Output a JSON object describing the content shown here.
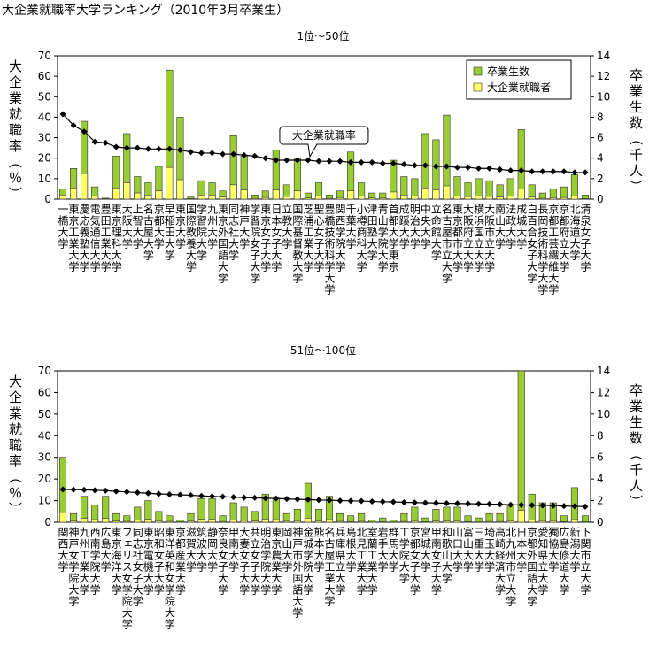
{
  "title": "大企業就職率大学ランキング（2010年3月卒業生）",
  "chart_data": [
    {
      "type": "bar",
      "title": "1位～50位",
      "ylabel": "大企業就職率（％）",
      "y2label": "卒業生数（千人）",
      "ylim": [
        0,
        70
      ],
      "yticks": [
        0,
        10,
        20,
        30,
        40,
        50,
        60,
        70
      ],
      "y2lim": [
        0,
        14
      ],
      "y2ticks": [
        0,
        2,
        4,
        6,
        8,
        10,
        12,
        14
      ],
      "legend": "upper right",
      "categories": [
        "一橋大学",
        "東京工業大学",
        "慶応義塾大学",
        "電気通信大学",
        "豊田工業大学",
        "東京理科大学",
        "大阪大学",
        "上智大学",
        "名古屋大学",
        "京都大学",
        "早稲田大学",
        "東京大学",
        "国際教養大学",
        "学習院大学",
        "九州大学",
        "東京外国語大学",
        "同志社大学",
        "神戸大学",
        "学習院女子大学",
        "東京女子大学",
        "日本女子大学",
        "立教大学",
        "国際基督教大学",
        "芝浦工業大学",
        "聖心女子大学",
        "豊橋技術科学大学",
        "関西学院大学",
        "千葉大学",
        "小樽商科大学",
        "津田塾大学",
        "青山学院大学",
        "首都大学東京",
        "成蹊大学",
        "明治大学",
        "中央大学",
        "立命館大学",
        "名古屋市立大学",
        "東京都市大学",
        "大阪府立大学",
        "横浜国立大学",
        "大阪市立大学",
        "南山大学",
        "法政大学",
        "成城大学",
        "白百合女子大学",
        "長岡技術科学大学",
        "京都工芸繊維大学",
        "京都府立大学",
        "北海道大学",
        "清泉女子大学"
      ],
      "series": [
        {
          "name": "卒業生数",
          "type": "bar",
          "axis": "y2",
          "color": "#99cc33",
          "values": [
            1.0,
            3.0,
            7.6,
            1.2,
            0.1,
            4.2,
            6.4,
            2.2,
            1.6,
            3.2,
            12.6,
            8.0,
            0.2,
            1.8,
            1.6,
            0.8,
            6.2,
            4.2,
            0.4,
            0.8,
            4.8,
            1.4,
            4.0,
            0.6,
            1.6,
            0.4,
            0.8,
            4.6,
            1.6,
            0.6,
            0.6,
            3.8,
            2.2,
            2.0,
            6.4,
            5.8,
            8.2,
            2.2,
            1.6,
            2.0,
            1.8,
            1.4,
            2.0,
            6.8,
            1.4,
            0.6,
            1.0,
            1.2,
            2.4,
            0.4
          ]
        },
        {
          "name": "大企業就職者",
          "type": "bar",
          "axis": "y2",
          "color": "#ffff66",
          "values": [
            0.4,
            1.1,
            2.5,
            0.3,
            0.03,
            1.1,
            1.6,
            0.6,
            0.4,
            0.8,
            3.1,
            1.9,
            0.05,
            0.4,
            0.4,
            0.2,
            1.4,
            0.9,
            0.08,
            0.16,
            0.9,
            0.27,
            0.8,
            0.11,
            0.3,
            0.07,
            0.15,
            0.8,
            0.3,
            0.11,
            0.1,
            0.7,
            0.4,
            0.3,
            1.1,
            0.9,
            1.3,
            0.3,
            0.25,
            0.3,
            0.27,
            0.2,
            0.28,
            1.0,
            0.19,
            0.08,
            0.14,
            0.16,
            0.3,
            0.05
          ]
        },
        {
          "name": "大企業就職率",
          "type": "line",
          "color": "#000000",
          "values": [
            41.5,
            36,
            33,
            28,
            27.5,
            25.5,
            25,
            25,
            24.5,
            24.5,
            24.5,
            24,
            23,
            22.5,
            22.5,
            22,
            22,
            21.5,
            21,
            20,
            19,
            19,
            19,
            19,
            18.5,
            18.5,
            18.5,
            18,
            18,
            18,
            17.5,
            17.5,
            17,
            16.5,
            16.5,
            16,
            16,
            15.5,
            15.5,
            15,
            15,
            14.5,
            14,
            14,
            13.5,
            13.5,
            13.5,
            13.5,
            13,
            13
          ]
        }
      ]
    },
    {
      "type": "bar",
      "title": "51位～100位",
      "ylabel": "大企業就職率（％）",
      "y2label": "卒業生数（千人）",
      "ylim": [
        0,
        70
      ],
      "yticks": [
        0,
        10,
        20,
        30,
        40,
        50,
        60,
        70
      ],
      "y2lim": [
        0,
        14
      ],
      "y2ticks": [
        0,
        2,
        4,
        6,
        8,
        10,
        12,
        14
      ],
      "categories": [
        "関西大学",
        "神戸女学院大学",
        "九州工業大学",
        "西南学院大学",
        "広島大学",
        "東京海洋大学",
        "フェリス女学院大学",
        "同志社女子大学",
        "東京電機大学",
        "昭和女子大学",
        "東洋英和女学院大学",
        "京都産業大学",
        "滋賀大学",
        "筑波大学",
        "静岡大学",
        "奈良女子大学",
        "甲南大学",
        "大妻女子大学",
        "共立女子大学",
        "明治学院大学",
        "東京農業大学",
        "岡山大学",
        "神戸市外国語大学",
        "金城学院大学",
        "熊本大学",
        "名古屋工業大学",
        "兵庫県立大学",
        "島根大学",
        "北見工業大学",
        "室蘭工業大学",
        "岩手大学",
        "群馬大学",
        "工学院大学",
        "京都女子大学",
        "宮城大学",
        "甲南女子大学",
        "和歌山大学",
        "山口大学",
        "富山大学",
        "三重大学",
        "埼玉大学",
        "高崎経済大学",
        "北九州市立大学",
        "日本大学",
        "京都外国語大学",
        "愛知県立大学",
        "獨協大学",
        "広島修道大学",
        "新潟大学",
        "下関市立大学"
      ],
      "series": [
        {
          "type": "bar",
          "axis": "y2",
          "color": "#99cc33",
          "values": [
            6.0,
            0.8,
            2.4,
            1.6,
            2.4,
            0.8,
            0.6,
            1.4,
            2.0,
            1.0,
            0.6,
            0.2,
            0.8,
            2.2,
            2.2,
            0.6,
            1.8,
            1.4,
            1.0,
            2.6,
            2.2,
            0.8,
            1.2,
            3.6,
            1.2,
            2.4,
            0.8,
            0.6,
            0.8,
            0.2,
            0.4,
            0.2,
            0.8,
            1.4,
            0.4,
            1.2,
            1.4,
            1.4,
            0.6,
            0.4,
            0.8,
            0.8,
            1.6,
            14,
            2.6,
            1.8,
            1.8,
            0.6,
            3.2,
            0.6
          ]
        },
        {
          "type": "bar",
          "axis": "y2",
          "color": "#ffff66",
          "values": [
            0.9,
            0.12,
            0.36,
            0.24,
            0.35,
            0.11,
            0.08,
            0.19,
            0.27,
            0.13,
            0.08,
            0.03,
            0.1,
            0.27,
            0.26,
            0.07,
            0.21,
            0.16,
            0.11,
            0.29,
            0.24,
            0.09,
            0.13,
            0.38,
            0.12,
            0.24,
            0.08,
            0.06,
            0.08,
            0.02,
            0.04,
            0.02,
            0.07,
            0.13,
            0.04,
            0.11,
            0.12,
            0.12,
            0.05,
            0.03,
            0.07,
            0.07,
            0.13,
            1.1,
            0.21,
            0.14,
            0.14,
            0.05,
            0.24,
            0.04
          ]
        },
        {
          "type": "line",
          "color": "#000000",
          "values": [
            15.2,
            15.1,
            15.0,
            14.8,
            14.6,
            14.3,
            14.0,
            13.7,
            13.4,
            13.1,
            12.9,
            12.7,
            12.5,
            12.2,
            12.0,
            11.8,
            11.6,
            11.4,
            11.3,
            11.1,
            11.0,
            10.8,
            10.6,
            10.5,
            10.3,
            10.2,
            10.0,
            9.9,
            9.8,
            9.6,
            9.5,
            9.4,
            9.2,
            9.1,
            9.0,
            8.9,
            8.8,
            8.7,
            8.6,
            8.5,
            8.4,
            8.3,
            8.1,
            8.0,
            7.9,
            7.8,
            7.7,
            7.5,
            7.4,
            7.2
          ]
        }
      ]
    }
  ]
}
